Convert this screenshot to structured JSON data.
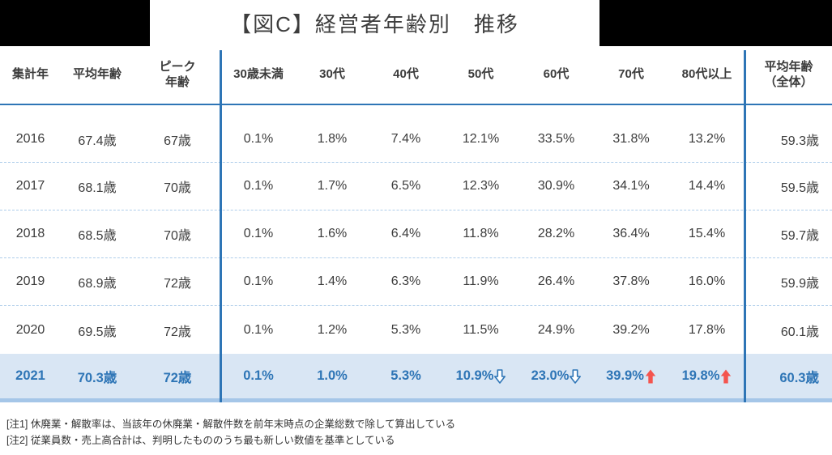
{
  "chart_data": {
    "type": "table",
    "title": "【図C】経営者年齢別　推移",
    "columns": [
      "集計年",
      "平均年齢",
      "ピーク\n年齢",
      "30歳未満",
      "30代",
      "40代",
      "50代",
      "60代",
      "70代",
      "80代以上",
      "平均年齢\n（全体）"
    ],
    "rows": [
      {
        "year": "2016",
        "cells": [
          "67.4歳",
          "67歳",
          "0.1%",
          "1.8%",
          "7.4%",
          "12.1%",
          "33.5%",
          "31.8%",
          "13.2%",
          "59.3歳"
        ],
        "highlight": false,
        "arrows": [
          null,
          null,
          null,
          null,
          null,
          null,
          null,
          null,
          null,
          null
        ]
      },
      {
        "year": "2017",
        "cells": [
          "68.1歳",
          "70歳",
          "0.1%",
          "1.7%",
          "6.5%",
          "12.3%",
          "30.9%",
          "34.1%",
          "14.4%",
          "59.5歳"
        ],
        "highlight": false,
        "arrows": [
          null,
          null,
          null,
          null,
          null,
          null,
          null,
          null,
          null,
          null
        ]
      },
      {
        "year": "2018",
        "cells": [
          "68.5歳",
          "70歳",
          "0.1%",
          "1.6%",
          "6.4%",
          "11.8%",
          "28.2%",
          "36.4%",
          "15.4%",
          "59.7歳"
        ],
        "highlight": false,
        "arrows": [
          null,
          null,
          null,
          null,
          null,
          null,
          null,
          null,
          null,
          null
        ]
      },
      {
        "year": "2019",
        "cells": [
          "68.9歳",
          "72歳",
          "0.1%",
          "1.4%",
          "6.3%",
          "11.9%",
          "26.4%",
          "37.8%",
          "16.0%",
          "59.9歳"
        ],
        "highlight": false,
        "arrows": [
          null,
          null,
          null,
          null,
          null,
          null,
          null,
          null,
          null,
          null
        ]
      },
      {
        "year": "2020",
        "cells": [
          "69.5歳",
          "72歳",
          "0.1%",
          "1.2%",
          "5.3%",
          "11.5%",
          "24.9%",
          "39.2%",
          "17.8%",
          "60.1歳"
        ],
        "highlight": false,
        "arrows": [
          null,
          null,
          null,
          null,
          null,
          null,
          null,
          null,
          null,
          null
        ]
      },
      {
        "year": "2021",
        "cells": [
          "70.3歳",
          "72歳",
          "0.1%",
          "1.0%",
          "5.3%",
          "10.9%",
          "23.0%",
          "39.9%",
          "19.8%",
          "60.3歳"
        ],
        "highlight": true,
        "arrows": [
          null,
          null,
          null,
          null,
          null,
          "down",
          "down",
          "up",
          "up",
          null
        ]
      }
    ],
    "highlighted_row": "2021",
    "layout": {
      "highlight_row_note": "2021 row shown in bold blue on light-blue band; 50代/60代 have blue hollow down arrows, 70代/80代以上 have red solid up arrows"
    }
  },
  "notes": [
    "[注1] 休廃業・解散率は、当該年の休廃業・解散件数を前年末時点の企業総数で除して算出している",
    "[注2] 従業員数・売上高合計は、判明したもののうち最も新しい数値を基準としている"
  ],
  "colors": {
    "accent_blue": "#2E75B6",
    "divider_blue": "#2E75B6",
    "dashed_separator": "#AECDEA",
    "highlight_bg": "#D9E6F4",
    "highlight_text": "#2E75B6",
    "bottom_bar": "#A5C6E8",
    "up_arrow_red": "#F4544E",
    "title_band": "#000000",
    "body_text": "#3c3c3c"
  }
}
